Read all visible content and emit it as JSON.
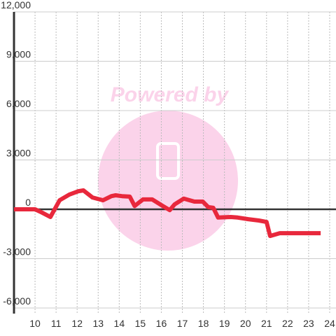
{
  "chart_data": {
    "type": "line",
    "watermark": "Powered by",
    "x": [
      9.0,
      10.0,
      10.33,
      10.73,
      11.17,
      11.63,
      12.07,
      12.3,
      12.73,
      13.23,
      13.63,
      13.83,
      14.13,
      14.5,
      14.73,
      15.13,
      15.57,
      16.07,
      16.4,
      16.63,
      17.07,
      17.57,
      17.97,
      18.23,
      18.47,
      18.7,
      19.3,
      19.63,
      20.13,
      20.63,
      21.0,
      21.17,
      21.63,
      22.97,
      23.57
    ],
    "series": [
      {
        "color": "#e8283c",
        "values": [
          0,
          0,
          -200,
          -470,
          550,
          900,
          1100,
          1150,
          720,
          550,
          800,
          850,
          800,
          770,
          200,
          600,
          600,
          200,
          -50,
          300,
          650,
          470,
          470,
          130,
          90,
          -500,
          -470,
          -500,
          -600,
          -680,
          -770,
          -1620,
          -1450,
          -1450,
          -1450
        ]
      }
    ],
    "xlim": [
      9,
      24.3
    ],
    "xticks": [
      10,
      11,
      12,
      13,
      14,
      15,
      16,
      17,
      18,
      19,
      20,
      21,
      22,
      23,
      24
    ],
    "ylim": [
      -6000,
      12000
    ],
    "yticks": [
      {
        "value": -6000,
        "label": "-6,000"
      },
      {
        "value": -3000,
        "label": "-3,000"
      },
      0,
      {
        "value": 3000,
        "label": "3,000"
      },
      {
        "value": 6000,
        "label": "6,000"
      },
      {
        "value": 9000,
        "label": "9,000"
      },
      {
        "value": 12000,
        "label": "12,000"
      }
    ],
    "grid": true
  }
}
